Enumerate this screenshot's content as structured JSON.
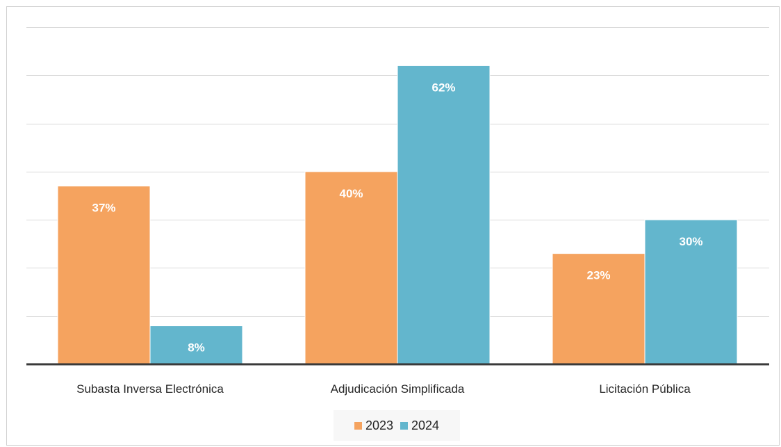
{
  "chart_data": {
    "type": "bar",
    "categories": [
      "Subasta Inversa Electrónica",
      "Adjudicación Simplificada",
      "Licitación Pública"
    ],
    "series": [
      {
        "name": "2023",
        "values": [
          37,
          40,
          23
        ],
        "labels": [
          "37%",
          "40%",
          "23%"
        ],
        "color": "#F5A35F"
      },
      {
        "name": "2024",
        "values": [
          8,
          62,
          30
        ],
        "labels": [
          "8%",
          "62%",
          "30%"
        ],
        "color": "#63B6CD"
      }
    ],
    "ylim": [
      0,
      70
    ],
    "ytick_step": 10,
    "grid": true,
    "legend_position": "bottom",
    "title": "",
    "xlabel": "",
    "ylabel": ""
  }
}
